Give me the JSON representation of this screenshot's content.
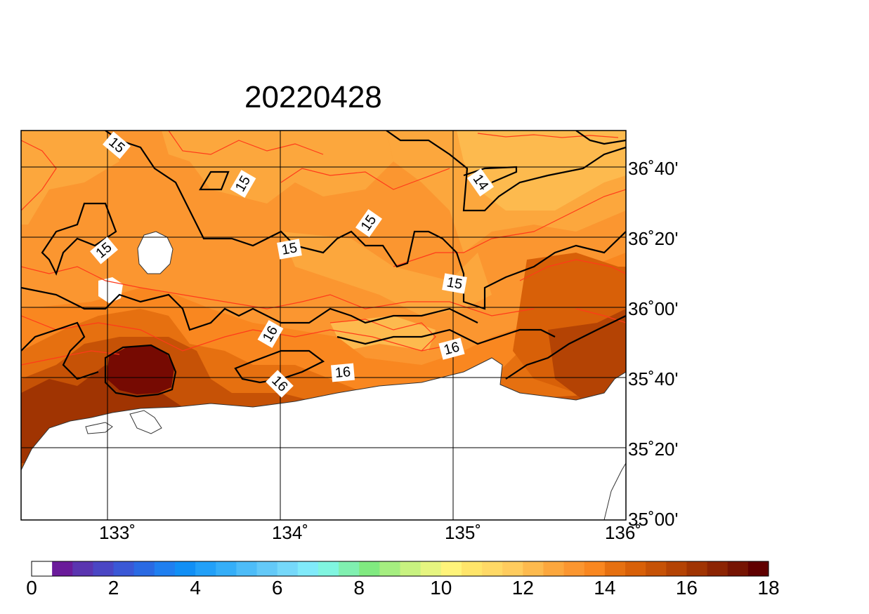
{
  "title": "20220428",
  "map": {
    "lon_labels": [
      "133˚",
      "134˚",
      "135˚",
      "136˚"
    ],
    "lat_labels": [
      "36˚40'",
      "36˚20'",
      "36˚00'",
      "35˚40'",
      "35˚20'",
      "35˚00'"
    ],
    "lon_range": [
      132.45,
      135.95
    ],
    "lat_range": [
      35.0,
      36.85
    ],
    "contour_labels": [
      "15",
      "15",
      "15",
      "15",
      "15",
      "14",
      "15",
      "16",
      "16",
      "16",
      "16"
    ]
  },
  "colorbar": {
    "tick_labels": [
      "0",
      "2",
      "4",
      "6",
      "8",
      "10",
      "12",
      "14",
      "16",
      "18"
    ],
    "colors": [
      "#ffffff",
      "#6a1b9a",
      "#5a35b0",
      "#4a46c4",
      "#3a58d6",
      "#2a6ae3",
      "#1f7ff0",
      "#118ff5",
      "#22a0f8",
      "#35aef8",
      "#4dbcf8",
      "#63c9f8",
      "#75d8fa",
      "#80eafa",
      "#80f5e0",
      "#80f0b0",
      "#80ea80",
      "#a5ee80",
      "#c8f280",
      "#e6f580",
      "#fff47a",
      "#ffe56a",
      "#ffd966",
      "#ffcc5e",
      "#fdba4e",
      "#fca73d",
      "#fb9630",
      "#f98720",
      "#e67010",
      "#d86008",
      "#c65206",
      "#b44304",
      "#a03402",
      "#8c2402",
      "#761402",
      "#600000"
    ]
  }
}
